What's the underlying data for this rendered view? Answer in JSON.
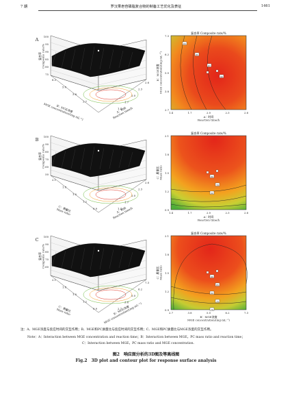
{
  "header": {
    "issue": "7 期",
    "title": "罗汉果皂苷磷脂复合物的制备工艺优化及表征",
    "page": "1461"
  },
  "panels": [
    {
      "letter": "A",
      "surface": {
        "zlabel": "复合率\nComposite rate/%",
        "zticks": [
          "100",
          "95",
          "90",
          "85",
          "80",
          "75"
        ],
        "xaxis_label": "A：时间\nReaction time/h",
        "xticks": [
          "2.6",
          "2.3",
          "2.0",
          "1.7",
          "1.4"
        ],
        "yaxis_label": "B：MGE浓度\nMGE concentration/(mg·mL⁻¹)",
        "yticks": [
          "6.2",
          "5.0",
          "3.8",
          "2.7"
        ]
      },
      "contour": {
        "title": "复合率  Composite rate/%",
        "ylabel": "B：MGE浓度\nMGE concentration/(mg·mL⁻¹)",
        "yticks": [
          "7.3",
          "6.2",
          "5.0",
          "3.8",
          "2.7"
        ],
        "xlabel": "A：时间\nReaction time/h",
        "xticks": [
          "1.4",
          "1.7",
          "2.0",
          "2.3",
          "2.6"
        ],
        "level_labels": [
          "83",
          "85",
          "87",
          "90"
        ]
      }
    },
    {
      "letter": "B",
      "surface": {
        "zlabel": "复合率\nComposite rate/%",
        "zticks": [
          "100",
          "90",
          "80",
          "70",
          "60",
          "50"
        ],
        "xaxis_label": "A：时间\nReaction time/h",
        "xticks": [
          "2.6",
          "2.3",
          "2.0",
          "1.7",
          "1.4"
        ],
        "yaxis_label": "C：质量比\nMass ratio",
        "yticks": [
          "2.1",
          "1.8",
          "1.5",
          "1.2",
          "0.9"
        ]
      },
      "contour": {
        "title": "复合率  Composite rate/%",
        "ylabel": "C：质量比\nMass ratio",
        "yticks": [
          "2.1",
          "1.8",
          "1.5",
          "1.2",
          "0.9"
        ],
        "xlabel": "A：时间\nReaction time/h",
        "xticks": [
          "1.4",
          "1.7",
          "2.0",
          "2.3",
          "2.6"
        ],
        "level_labels": [
          "80",
          "70",
          "60"
        ]
      }
    },
    {
      "letter": "C",
      "surface": {
        "zlabel": "复合率\nComposite rate/%",
        "zticks": [
          "100",
          "90",
          "80",
          "70",
          "60"
        ],
        "xaxis_label": "B：MGE浓度\nMGE concentration/(mg·mL⁻¹)",
        "xticks": [
          "7.3",
          "6.2",
          "5.0",
          "3.8",
          "2.7"
        ],
        "yaxis_label": "C：质量比\nMass ratio",
        "yticks": [
          "2.1",
          "1.8",
          "1.5",
          "1.2",
          "0.9"
        ]
      },
      "contour": {
        "title": "复合率  Composite rate/%",
        "ylabel": "C：质量比\nMass ratio",
        "yticks": [
          "2.1",
          "1.8",
          "1.5",
          "1.2",
          "0.9"
        ],
        "xlabel": "B：MGE浓度\nMGE concentration/(mg·mL⁻¹)",
        "xticks": [
          "2.7",
          "3.8",
          "5.0",
          "6.2",
          "7.3"
        ],
        "level_labels": [
          "90",
          "85",
          "80",
          "75",
          "70"
        ]
      }
    }
  ],
  "notes": {
    "zh": "注：A、MGE浓度与反应时间的交互作用；B、MGE和PC质量比与反应时间的交互作用；C、MGE和PC质量比与MGE浓度的交互作用。",
    "en1": "Note：A：Interaction between MGE concentration and reaction time；B：Interaction between MGE，PC mass ratio and reaction time；",
    "en2": "C：Interaction between MGE，PC mass ratio and MGE concentration."
  },
  "caption": {
    "zh": "图2　响应面分析的3D图及等高线图",
    "en": "Fig.2　3D plot and contour plot for response surface analysis"
  },
  "colors": {
    "hot": "#e02a18",
    "mid": "#f29a1f",
    "cool": "#6ab83a",
    "surface": "#111111"
  }
}
